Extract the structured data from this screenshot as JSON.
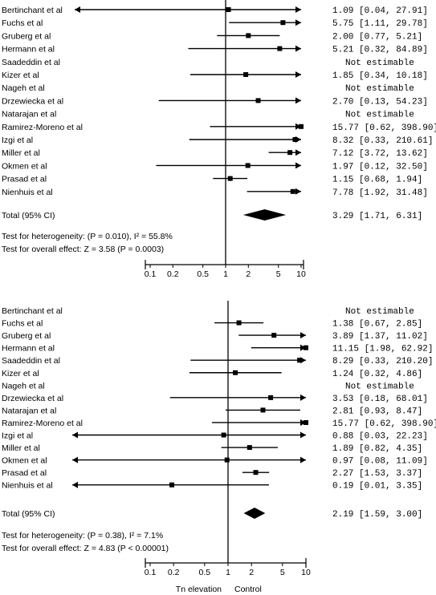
{
  "chart_data": [
    {
      "type": "forest",
      "xscale": "log",
      "xlim": [
        0.1,
        10
      ],
      "xticks": [
        "0.1",
        "0.2",
        "0.5",
        "1",
        "2",
        "5",
        "10"
      ],
      "studies": [
        {
          "name": "Bertinchant et al",
          "or": 1.09,
          "lo": 0.04,
          "hi": 27.91,
          "ci_text": "1.09 [0.04, 27.91]"
        },
        {
          "name": "Fuchs et al",
          "or": 5.75,
          "lo": 1.11,
          "hi": 29.78,
          "ci_text": "5.75 [1.11, 29.78]"
        },
        {
          "name": "Gruberg et al",
          "or": 2.0,
          "lo": 0.77,
          "hi": 5.21,
          "ci_text": "2.00 [0.77, 5.21]"
        },
        {
          "name": "Hermann et al",
          "or": 5.21,
          "lo": 0.32,
          "hi": 84.89,
          "ci_text": "5.21 [0.32, 84.89]"
        },
        {
          "name": "Saadeddin et al",
          "or": null,
          "lo": null,
          "hi": null,
          "ci_text": "Not estimable"
        },
        {
          "name": "Kizer et al",
          "or": 1.85,
          "lo": 0.34,
          "hi": 10.18,
          "ci_text": "1.85 [0.34, 10.18]"
        },
        {
          "name": "Nageh et al",
          "or": null,
          "lo": null,
          "hi": null,
          "ci_text": "Not estimable"
        },
        {
          "name": "Drzewiecka et al",
          "or": 2.7,
          "lo": 0.13,
          "hi": 54.23,
          "ci_text": "2.70 [0.13, 54.23]"
        },
        {
          "name": "Natarajan et al",
          "or": null,
          "lo": null,
          "hi": null,
          "ci_text": "Not estimable"
        },
        {
          "name": "Ramirez-Moreno et al",
          "or": 15.77,
          "lo": 0.62,
          "hi": 398.9,
          "ci_text": "15.77 [0.62, 398.90]"
        },
        {
          "name": "Izgi et al",
          "or": 8.32,
          "lo": 0.33,
          "hi": 210.61,
          "ci_text": "8.32 [0.33, 210.61]"
        },
        {
          "name": "Miller et al",
          "or": 7.12,
          "lo": 3.72,
          "hi": 13.62,
          "ci_text": "7.12 [3.72, 13.62]"
        },
        {
          "name": "Okmen et al",
          "or": 1.97,
          "lo": 0.12,
          "hi": 32.5,
          "ci_text": "1.97 [0.12, 32.50]"
        },
        {
          "name": "Prasad et al",
          "or": 1.15,
          "lo": 0.68,
          "hi": 1.94,
          "ci_text": "1.15 [0.68, 1.94]"
        },
        {
          "name": "Nienhuis et al",
          "or": 7.78,
          "lo": 1.92,
          "hi": 31.48,
          "ci_text": "7.78 [1.92, 31.48]"
        }
      ],
      "total": {
        "label": "Total (95% CI)",
        "or": 3.29,
        "lo": 1.71,
        "hi": 6.31,
        "ci_text": "3.29 [1.71, 6.31]"
      },
      "heterogeneity": "Test for heterogeneity: (P = 0.010), I² = 55.8%",
      "overall_effect": "Test for overall effect: Z = 3.58 (P = 0.0003)",
      "xlabel_left": "",
      "xlabel_right": ""
    },
    {
      "type": "forest",
      "xscale": "log",
      "xlim": [
        0.1,
        10
      ],
      "xticks": [
        "0.1",
        "0.2",
        "0.5",
        "1",
        "2",
        "5",
        "10"
      ],
      "studies": [
        {
          "name": "Bertinchant et al",
          "or": null,
          "lo": null,
          "hi": null,
          "ci_text": "Not estimable"
        },
        {
          "name": "Fuchs et al",
          "or": 1.38,
          "lo": 0.67,
          "hi": 2.85,
          "ci_text": "1.38 [0.67, 2.85]"
        },
        {
          "name": "Gruberg et al",
          "or": 3.89,
          "lo": 1.37,
          "hi": 11.02,
          "ci_text": "3.89 [1.37, 11.02]"
        },
        {
          "name": "Hermann et al",
          "or": 11.15,
          "lo": 1.98,
          "hi": 62.92,
          "ci_text": "11.15 [1.98, 62.92]"
        },
        {
          "name": "Saadeddin et al",
          "or": 8.29,
          "lo": 0.33,
          "hi": 210.2,
          "ci_text": "8.29 [0.33, 210.20]"
        },
        {
          "name": "Kizer et al",
          "or": 1.24,
          "lo": 0.32,
          "hi": 4.86,
          "ci_text": "1.24 [0.32, 4.86]"
        },
        {
          "name": "Nageh et al",
          "or": null,
          "lo": null,
          "hi": null,
          "ci_text": "Not estimable"
        },
        {
          "name": "Drzewiecka et al",
          "or": 3.53,
          "lo": 0.18,
          "hi": 68.01,
          "ci_text": "3.53 [0.18, 68.01]"
        },
        {
          "name": "Natarajan et al",
          "or": 2.81,
          "lo": 0.93,
          "hi": 8.47,
          "ci_text": "2.81 [0.93, 8.47]"
        },
        {
          "name": "Ramirez-Moreno et al",
          "or": 15.77,
          "lo": 0.62,
          "hi": 398.9,
          "ci_text": "15.77 [0.62, 398.90]"
        },
        {
          "name": "Izgi et al",
          "or": 0.88,
          "lo": 0.03,
          "hi": 22.23,
          "ci_text": "0.88 [0.03, 22.23]"
        },
        {
          "name": "Miller et al",
          "or": 1.89,
          "lo": 0.82,
          "hi": 4.35,
          "ci_text": "1.89 [0.82, 4.35]"
        },
        {
          "name": "Okmen et al",
          "or": 0.97,
          "lo": 0.08,
          "hi": 11.09,
          "ci_text": "0.97 [0.08, 11.09]"
        },
        {
          "name": "Prasad et al",
          "or": 2.27,
          "lo": 1.53,
          "hi": 3.37,
          "ci_text": "2.27 [1.53, 3.37]"
        },
        {
          "name": "Nienhuis et al",
          "or": 0.19,
          "lo": 0.01,
          "hi": 3.35,
          "ci_text": "0.19 [0.01, 3.35]"
        }
      ],
      "total": {
        "label": "Total (95% CI)",
        "or": 2.19,
        "lo": 1.59,
        "hi": 3.0,
        "ci_text": "2.19 [1.59, 3.00]"
      },
      "heterogeneity": "Test for heterogeneity: (P = 0.38), I² = 7.1%",
      "overall_effect": "Test for overall effect: Z = 4.83 (P < 0.00001)",
      "xlabel_left": "Tn elevation",
      "xlabel_right": "Control"
    }
  ]
}
